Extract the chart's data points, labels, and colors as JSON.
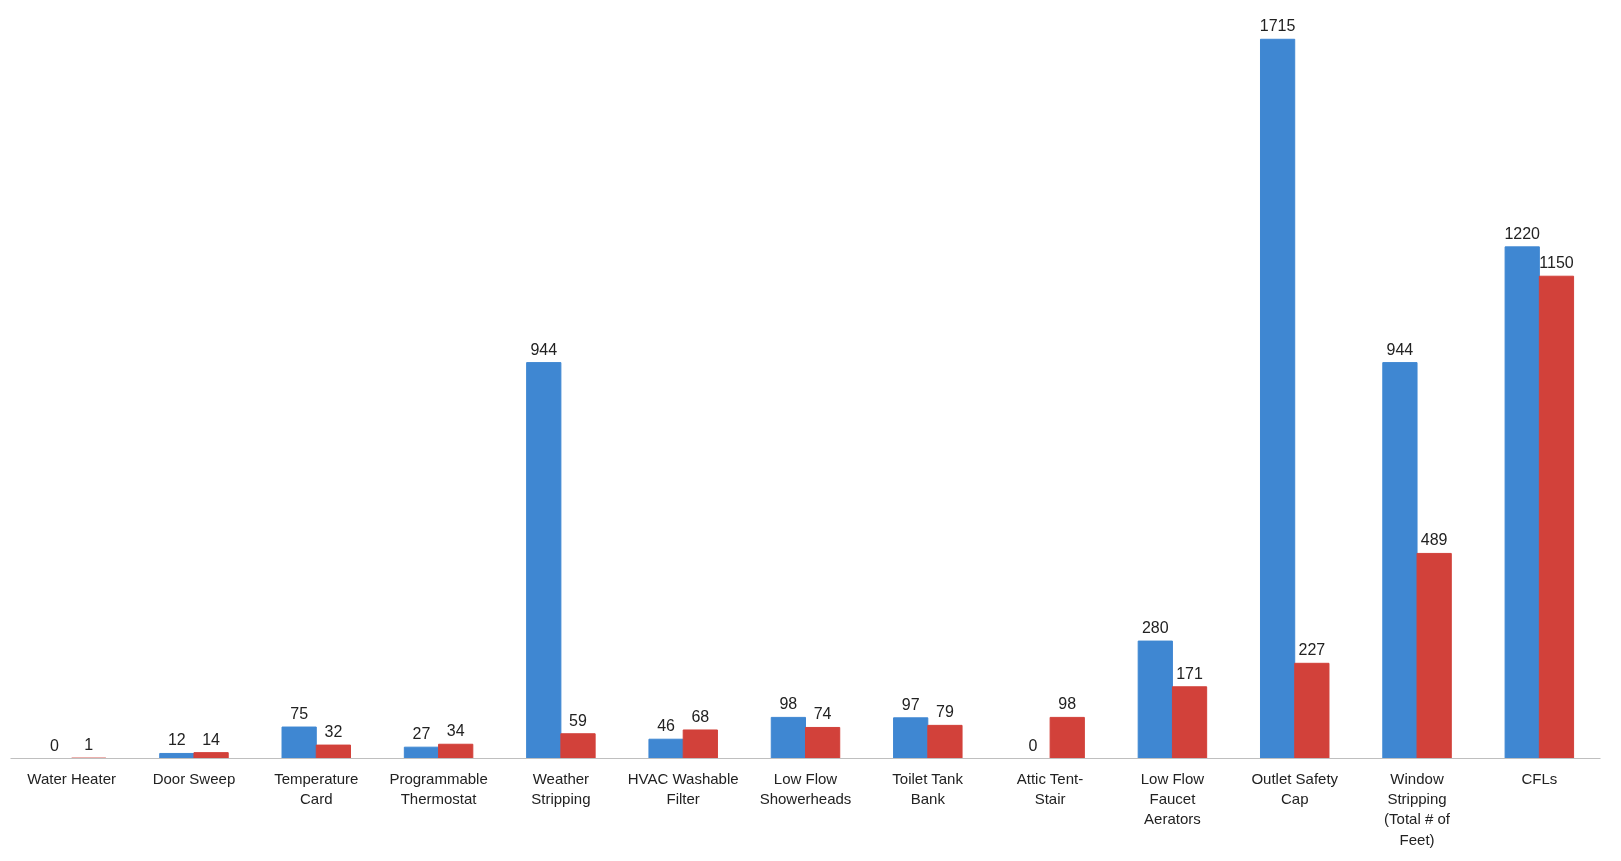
{
  "chart_data": {
    "type": "bar",
    "categories": [
      "Water Heater",
      "Door Sweep",
      "Temperature Card",
      "Programmable Thermostat",
      "Weather Stripping",
      "HVAC Washable Filter",
      "Low Flow Showerheads",
      "Toilet Tank Bank",
      "Attic Tent-Stair",
      "Low Flow Faucet Aerators",
      "Outlet Safety Cap",
      "Window Stripping (Total # of Feet)",
      "CFLs"
    ],
    "series": [
      {
        "color": "#3f87d2",
        "values": [
          0,
          12,
          75,
          27,
          944,
          46,
          98,
          97,
          0,
          280,
          1715,
          944,
          1220
        ]
      },
      {
        "color": "#d2413a",
        "values": [
          1,
          14,
          32,
          34,
          59,
          68,
          74,
          79,
          98,
          171,
          227,
          489,
          1150
        ]
      }
    ],
    "data_labels": true,
    "grid": false
  }
}
